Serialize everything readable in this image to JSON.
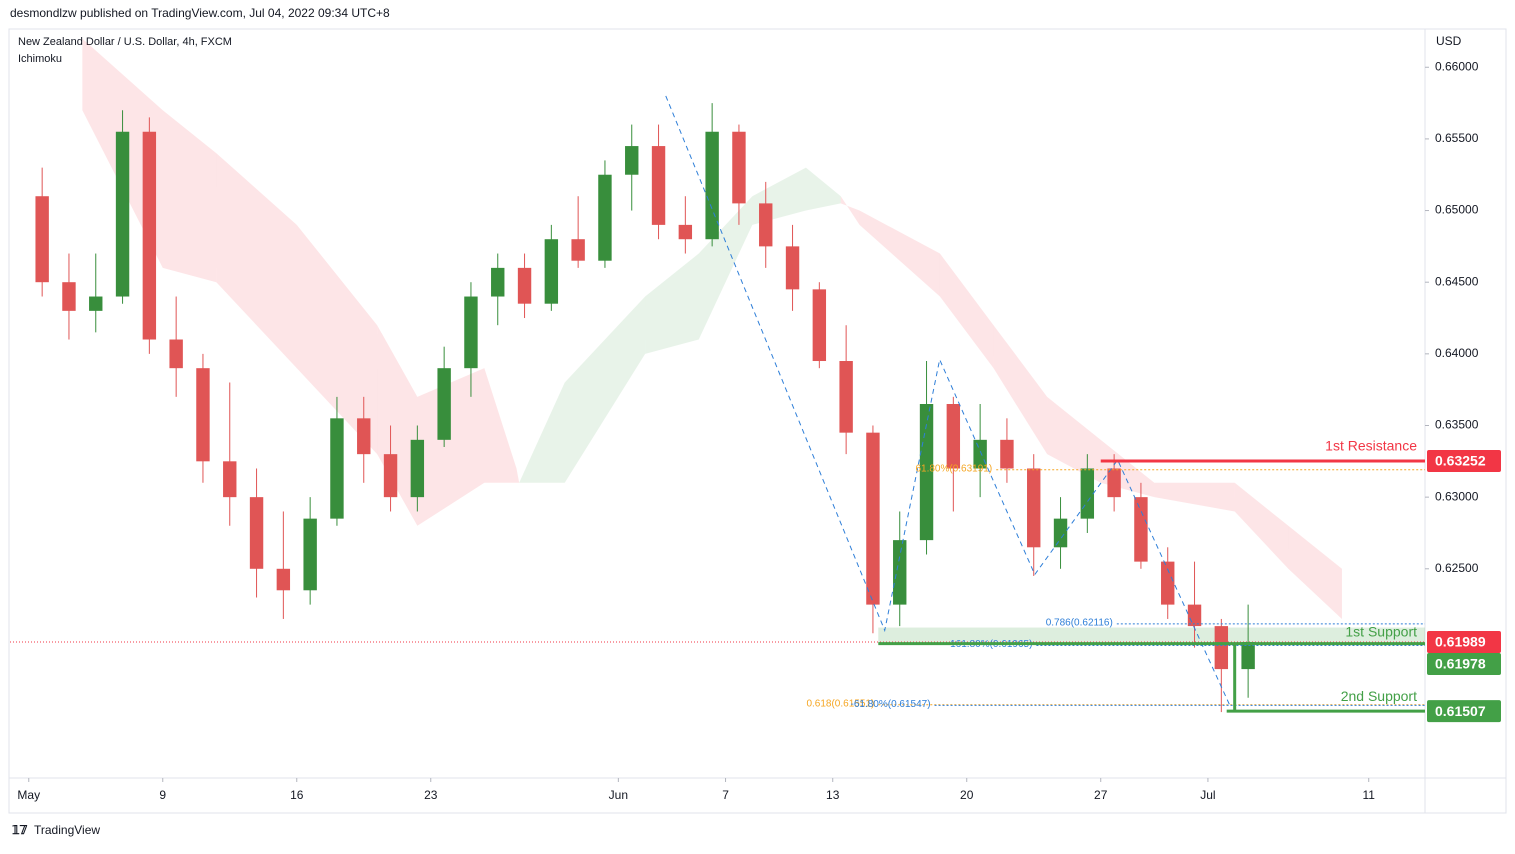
{
  "header": {
    "published": "desmondlzw published on TradingView.com, Jul 04, 2022 09:34 UTC+8"
  },
  "footer": {
    "brand": "TradingView"
  },
  "chart_data": {
    "type": "candlestick",
    "title": "New Zealand Dollar / U.S. Dollar, 4h, FXCM",
    "indicator": "Ichimoku",
    "y_axis_label": "USD",
    "xlim": [
      -0.7,
      52.1
    ],
    "xticks": [
      {
        "value": 0,
        "label": "May"
      },
      {
        "value": 5,
        "label": "9"
      },
      {
        "value": 10,
        "label": "16"
      },
      {
        "value": 15,
        "label": "23"
      },
      {
        "value": 22,
        "label": "Jun"
      },
      {
        "value": 26,
        "label": "7"
      },
      {
        "value": 30,
        "label": "13"
      },
      {
        "value": 35,
        "label": "20"
      },
      {
        "value": 40,
        "label": "27"
      },
      {
        "value": 44,
        "label": "Jul"
      },
      {
        "value": 50,
        "label": "11"
      }
    ],
    "ylim": [
      0.6104,
      0.6626
    ],
    "yticks": [
      {
        "value": 0.66,
        "label": "0.66000"
      },
      {
        "value": 0.655,
        "label": "0.65500"
      },
      {
        "value": 0.65,
        "label": "0.65000"
      },
      {
        "value": 0.645,
        "label": "0.64500"
      },
      {
        "value": 0.64,
        "label": "0.64000"
      },
      {
        "value": 0.635,
        "label": "0.63500"
      },
      {
        "value": 0.63,
        "label": "0.63000"
      },
      {
        "value": 0.625,
        "label": "0.62500"
      }
    ],
    "up_color": "#388e3c",
    "down_color": "#e05555",
    "x": [
      0.5,
      1.5,
      2.5,
      3.5,
      4.5,
      5.5,
      6.5,
      7.5,
      8.5,
      9.5,
      10.5,
      11.5,
      12.5,
      13.5,
      14.5,
      15.5,
      16.5,
      17.5,
      18.5,
      19.5,
      20.5,
      21.5,
      22.5,
      23.5,
      24.5,
      25.5,
      26.5,
      27.5,
      28.5,
      29.5,
      30.5,
      31.5,
      32.5,
      33.5,
      34.5,
      35.5,
      36.5,
      37.5,
      38.5,
      39.5,
      40.5,
      41.5,
      42.5,
      43.5,
      44.5,
      45.5
    ],
    "open": [
      0.651,
      0.645,
      0.643,
      0.644,
      0.6555,
      0.641,
      0.639,
      0.6325,
      0.63,
      0.625,
      0.6235,
      0.6285,
      0.6355,
      0.633,
      0.63,
      0.634,
      0.639,
      0.644,
      0.646,
      0.6435,
      0.648,
      0.6465,
      0.6525,
      0.6545,
      0.649,
      0.648,
      0.6555,
      0.6505,
      0.6475,
      0.6445,
      0.6395,
      0.6345,
      0.6225,
      0.627,
      0.6365,
      0.632,
      0.634,
      0.632,
      0.6265,
      0.6285,
      0.632,
      0.63,
      0.6255,
      0.6225,
      0.621,
      0.618
    ],
    "high": [
      0.653,
      0.647,
      0.647,
      0.657,
      0.6565,
      0.644,
      0.64,
      0.638,
      0.632,
      0.629,
      0.63,
      0.637,
      0.637,
      0.635,
      0.635,
      0.6405,
      0.645,
      0.647,
      0.647,
      0.649,
      0.651,
      0.6535,
      0.656,
      0.656,
      0.651,
      0.6575,
      0.656,
      0.652,
      0.649,
      0.645,
      0.642,
      0.635,
      0.629,
      0.6395,
      0.637,
      0.6365,
      0.6355,
      0.633,
      0.63,
      0.633,
      0.633,
      0.631,
      0.6265,
      0.6255,
      0.6215,
      0.6225
    ],
    "low": [
      0.644,
      0.641,
      0.6415,
      0.6435,
      0.64,
      0.637,
      0.631,
      0.628,
      0.623,
      0.6215,
      0.6225,
      0.628,
      0.631,
      0.629,
      0.629,
      0.6335,
      0.637,
      0.642,
      0.6425,
      0.643,
      0.646,
      0.646,
      0.65,
      0.648,
      0.647,
      0.6475,
      0.649,
      0.646,
      0.643,
      0.639,
      0.633,
      0.6205,
      0.621,
      0.626,
      0.629,
      0.63,
      0.631,
      0.6245,
      0.625,
      0.6275,
      0.629,
      0.625,
      0.6215,
      0.6195,
      0.615,
      0.616
    ],
    "close": [
      0.645,
      0.643,
      0.644,
      0.6555,
      0.641,
      0.639,
      0.6325,
      0.63,
      0.625,
      0.6235,
      0.6285,
      0.6355,
      0.633,
      0.63,
      0.634,
      0.639,
      0.644,
      0.646,
      0.6435,
      0.648,
      0.6465,
      0.6525,
      0.6545,
      0.649,
      0.648,
      0.6555,
      0.6505,
      0.6475,
      0.6445,
      0.6395,
      0.6345,
      0.6225,
      0.627,
      0.6365,
      0.632,
      0.634,
      0.632,
      0.6265,
      0.6285,
      0.632,
      0.63,
      0.6255,
      0.6225,
      0.621,
      0.618,
      0.61989
    ],
    "cloud": {
      "bull_color": "rgba(67,160,71,0.12)",
      "bear_color": "rgba(242,54,69,0.13)",
      "x": [
        2,
        5,
        7,
        10,
        13,
        14.5,
        17,
        18.2,
        18.3,
        20,
        23,
        25,
        27,
        29,
        30.3,
        31,
        34,
        36,
        38,
        40,
        42,
        45,
        47,
        49
      ],
      "span_a": [
        0.657,
        0.646,
        0.645,
        0.639,
        0.633,
        0.628,
        0.631,
        0.631,
        0.631,
        0.638,
        0.644,
        0.647,
        0.651,
        0.653,
        0.651,
        0.649,
        0.644,
        0.639,
        0.633,
        0.631,
        0.63,
        0.629,
        0.625,
        0.6215
      ],
      "span_b": [
        0.662,
        0.657,
        0.654,
        0.649,
        0.642,
        0.637,
        0.639,
        0.632,
        0.631,
        0.631,
        0.64,
        0.641,
        0.649,
        0.65,
        0.6505,
        0.65,
        0.647,
        0.642,
        0.637,
        0.634,
        0.631,
        0.631,
        0.628,
        0.625
      ]
    },
    "pattern": {
      "color": "#2f7fd8",
      "x": [
        23.77,
        31.94,
        33.99,
        37.54,
        40.63,
        44.81
      ],
      "y": [
        0.658,
        0.6207,
        0.6396,
        0.6246,
        0.6326,
        0.6155
      ]
    },
    "levels": [
      {
        "name": "1st Resistance",
        "value": 0.63252,
        "start": 40,
        "color": "#f23645"
      },
      {
        "name": "1st Support",
        "value": 0.61978,
        "zone_top": 0.6209,
        "start": 31.7,
        "color": "#43a047"
      },
      {
        "name": "2nd Support",
        "value": 0.61507,
        "start": 44.7,
        "color": "#43a047"
      }
    ],
    "fib_lines": [
      {
        "label": "61.80%(0.63191)",
        "value": 0.63191,
        "start": 36.1,
        "color": "#f5a623"
      },
      {
        "label": "0.786(0.62116)",
        "value": 0.62116,
        "start": 40.6,
        "color": "#2f7fd8"
      },
      {
        "label": "161.80%(0.61965)",
        "value": 0.61965,
        "start": 37.6,
        "color": "#2f7fd8"
      },
      {
        "label": "0.618(0.61551)",
        "value": 0.61551,
        "start": 31.7,
        "color": "#f5a623"
      },
      {
        "label": "-61.80%(0.61547)",
        "value": 0.61547,
        "start": 33.8,
        "color": "#2f7fd8"
      }
    ],
    "last_price": {
      "value": 0.61989,
      "color": "#f23645"
    }
  }
}
